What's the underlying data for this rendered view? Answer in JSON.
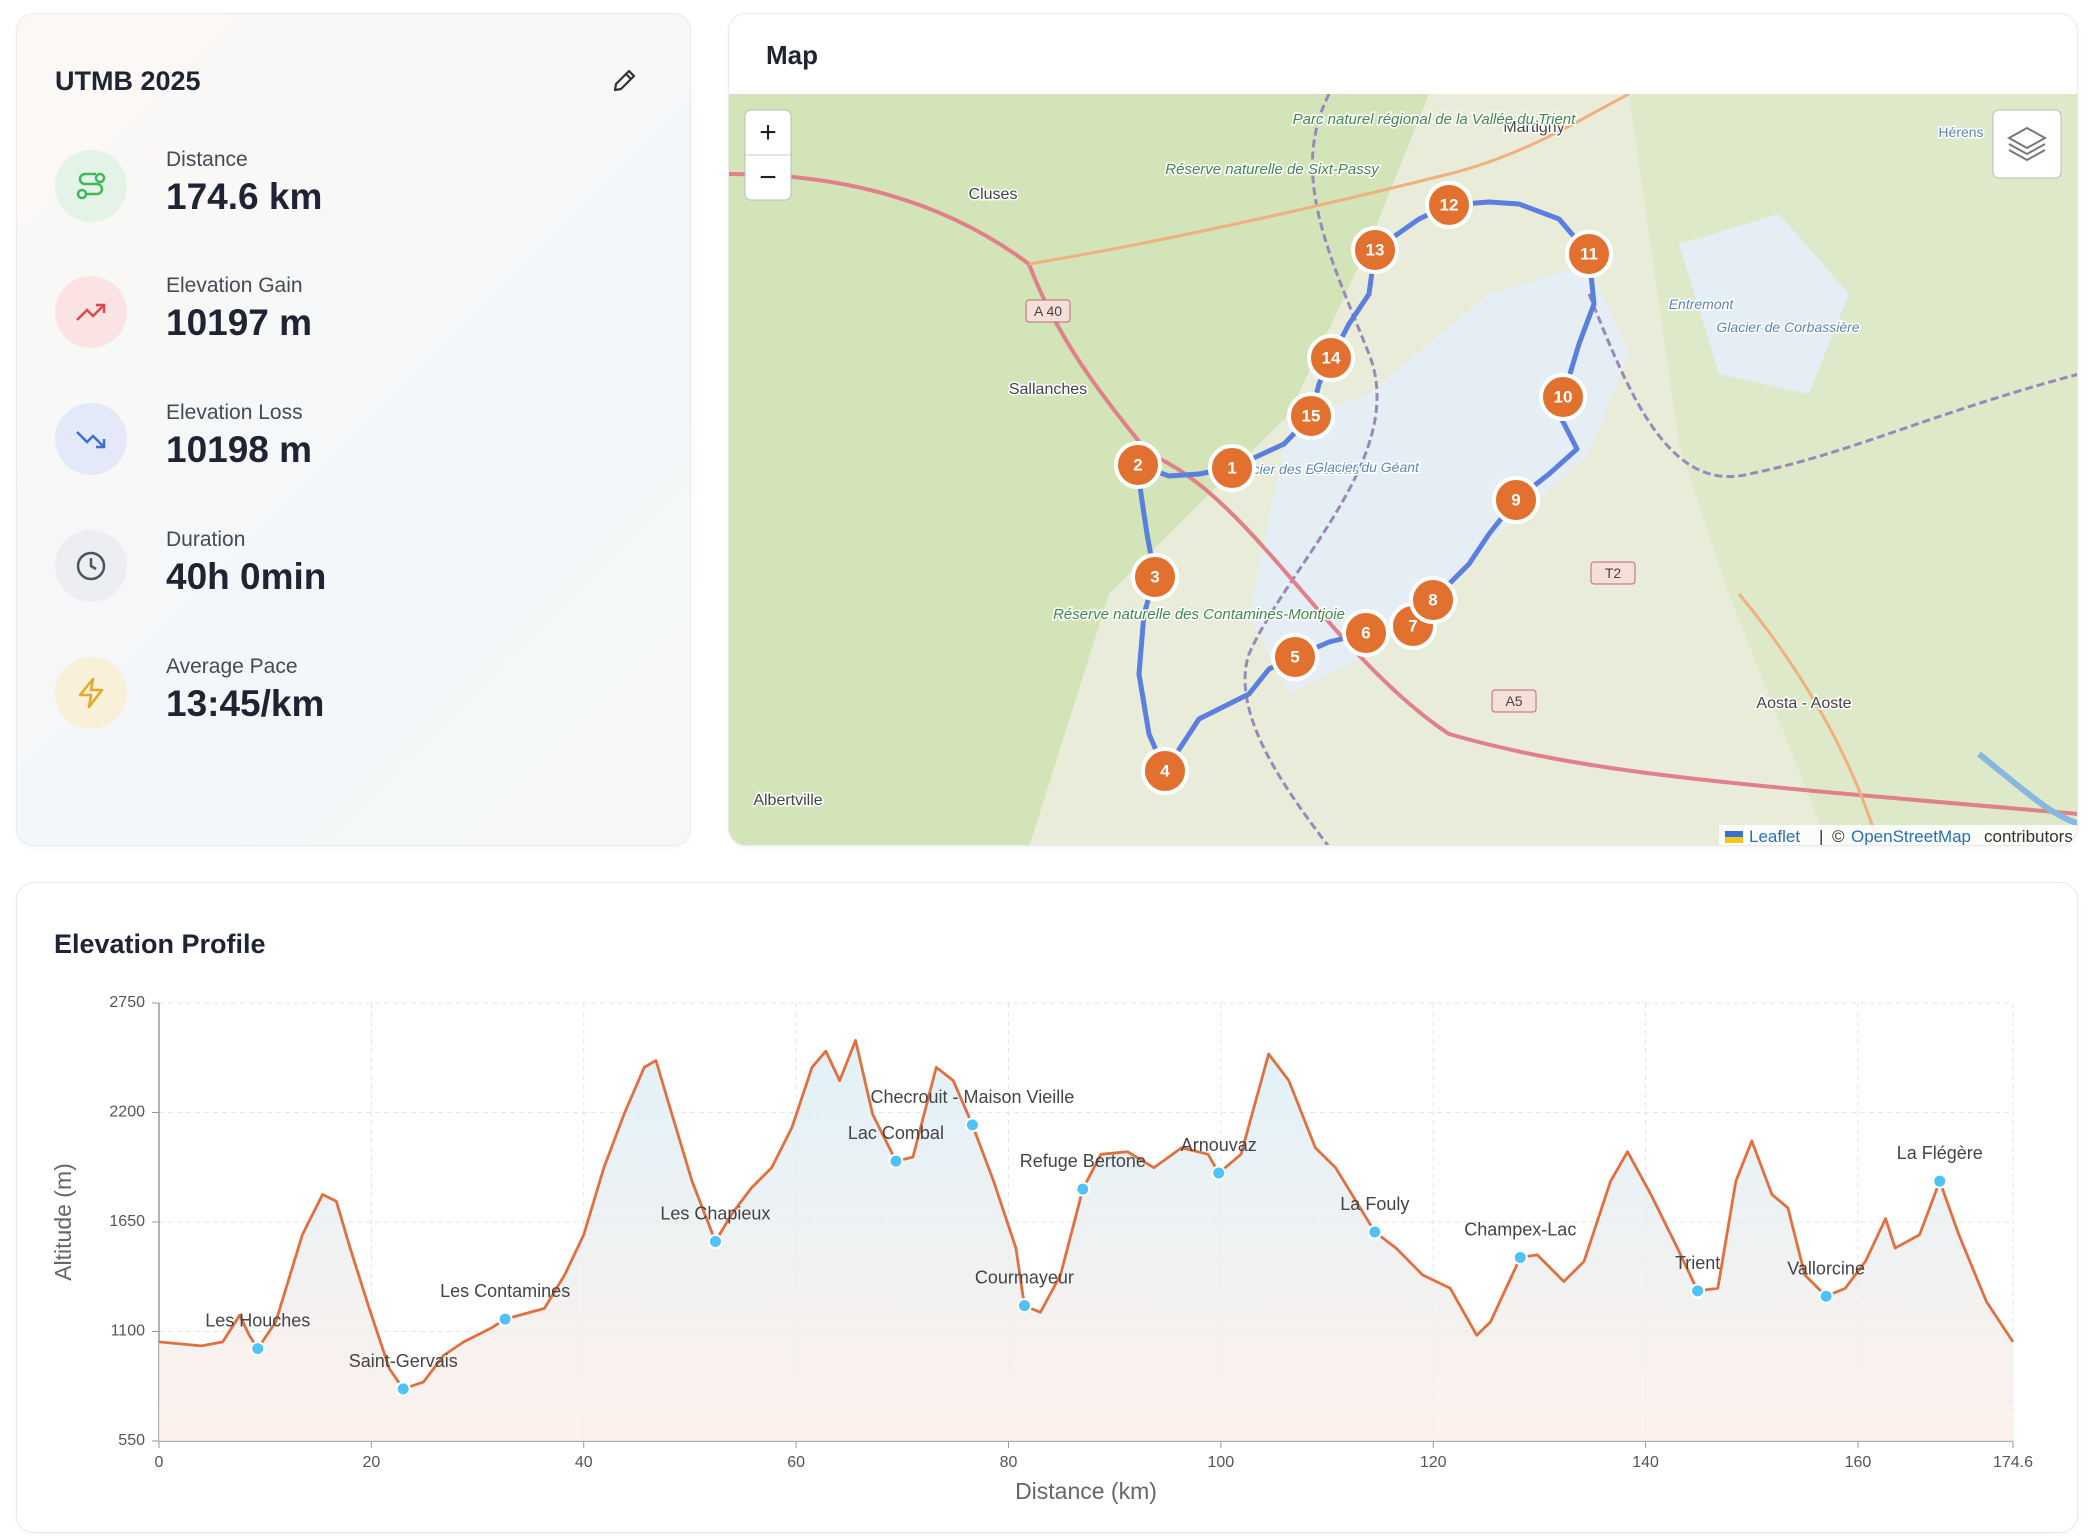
{
  "stats_card": {
    "title": "UTMB 2025",
    "stats": [
      {
        "label": "Distance",
        "value": "174.6 km"
      },
      {
        "label": "Elevation Gain",
        "value": "10197 m"
      },
      {
        "label": "Elevation Loss",
        "value": "10198 m"
      },
      {
        "label": "Duration",
        "value": "40h 0min"
      },
      {
        "label": "Average Pace",
        "value": "13:45/km"
      }
    ]
  },
  "map": {
    "title": "Map",
    "zoom_in": "+",
    "zoom_out": "−",
    "markers": [
      1,
      2,
      3,
      4,
      5,
      6,
      7,
      8,
      9,
      10,
      11,
      12,
      13,
      14,
      15
    ],
    "places": [
      "Cluses",
      "Sallanches",
      "Albertville",
      "Martigny",
      "Aosta - Aoste",
      "Entremont",
      "Glacier de Corbassière",
      "Hérens",
      "Glacier des Bossons",
      "Glacier du Géant"
    ],
    "reserves": [
      "Parc naturel régional de la Vallée du Trient",
      "Réserve naturelle de Sixt-Passy",
      "Réserve naturelle des Contamines-Montjoie"
    ],
    "roads": [
      "A 40",
      "T2",
      "A5"
    ],
    "attribution": [
      "Leaflet",
      "|",
      "©",
      "OpenStreetMap",
      "contributors"
    ]
  },
  "elevation_panel": {
    "title": "Elevation Profile"
  },
  "chart_data": {
    "type": "line",
    "xlabel": "Distance (km)",
    "ylabel": "Altitude (m)",
    "xlim": [
      0,
      174.6
    ],
    "ylim": [
      550,
      2750
    ],
    "xticks": [
      0,
      20,
      40,
      60,
      80,
      100,
      120,
      140,
      160,
      174.6
    ],
    "yticks": [
      550,
      1100,
      1650,
      2200,
      2750
    ],
    "grid": true,
    "x": [
      0,
      4,
      6,
      7.6,
      8.5,
      9.3,
      11,
      13.5,
      15.4,
      16.7,
      18,
      19.8,
      21.7,
      23,
      24.9,
      26.8,
      28.7,
      31.2,
      32.6,
      36.3,
      38.2,
      40,
      41.9,
      43.8,
      45.7,
      46.8,
      48.3,
      50.2,
      52.4,
      53.9,
      55.8,
      57.7,
      59.6,
      61.5,
      62.8,
      64.1,
      65.6,
      67.2,
      69.4,
      71,
      73.2,
      74.8,
      76.6,
      78.6,
      80.7,
      81.5,
      83,
      84.9,
      87,
      88.7,
      91.2,
      93.7,
      96.3,
      98.8,
      99.8,
      101.9,
      104.5,
      106.4,
      108.9,
      110.8,
      114.5,
      116.5,
      119,
      121.6,
      124.1,
      125.4,
      128.2,
      129.8,
      132.3,
      134.2,
      136.7,
      138.3,
      140.5,
      143,
      144.9,
      146.8,
      148.5,
      150,
      151.9,
      153.4,
      155,
      157,
      158.8,
      160.7,
      162.6,
      163.5,
      165.8,
      167.7,
      169.5,
      172.1,
      174.6
    ],
    "series": [
      {
        "color": "#e2703f",
        "values": [
          1048,
          1028,
          1048,
          1182,
          1081,
          1014,
          1149,
          1586,
          1788,
          1754,
          1519,
          1216,
          913,
          812,
          846,
          980,
          1048,
          1115,
          1162,
          1216,
          1384,
          1586,
          1923,
          2192,
          2427,
          2461,
          2192,
          1855,
          1552,
          1687,
          1822,
          1923,
          2124,
          2427,
          2508,
          2360,
          2562,
          2192,
          1956,
          1976,
          2427,
          2360,
          2138,
          1855,
          1519,
          1230,
          1196,
          1384,
          1815,
          1990,
          2003,
          1923,
          2023,
          1990,
          1896,
          1990,
          2494,
          2360,
          2023,
          1923,
          1600,
          1519,
          1384,
          1317,
          1081,
          1149,
          1472,
          1485,
          1351,
          1452,
          1855,
          2003,
          1788,
          1519,
          1304,
          1317,
          1855,
          2057,
          1788,
          1721,
          1384,
          1277,
          1317,
          1452,
          1667,
          1519,
          1586,
          1855,
          1586,
          1250,
          1048
        ]
      }
    ],
    "waypoints": {
      "color": "#4fc3f7",
      "names": [
        "Les Houches",
        "Saint-Gervais",
        "Les Contamines",
        "Les Chapieux",
        "Lac Combal",
        "Checrouit - Maison Vieille",
        "Courmayeur",
        "Refuge Bertone",
        "Arnouvaz",
        "La Fouly",
        "Champex-Lac",
        "Trient",
        "Vallorcine",
        "La Flégère"
      ],
      "x": [
        9.3,
        23,
        32.6,
        52.4,
        69.4,
        76.6,
        81.5,
        87,
        99.8,
        114.5,
        128.2,
        144.9,
        157,
        167.7
      ],
      "y": [
        1014,
        812,
        1162,
        1552,
        1956,
        2138,
        1230,
        1815,
        1896,
        1600,
        1472,
        1304,
        1277,
        1855
      ]
    }
  }
}
